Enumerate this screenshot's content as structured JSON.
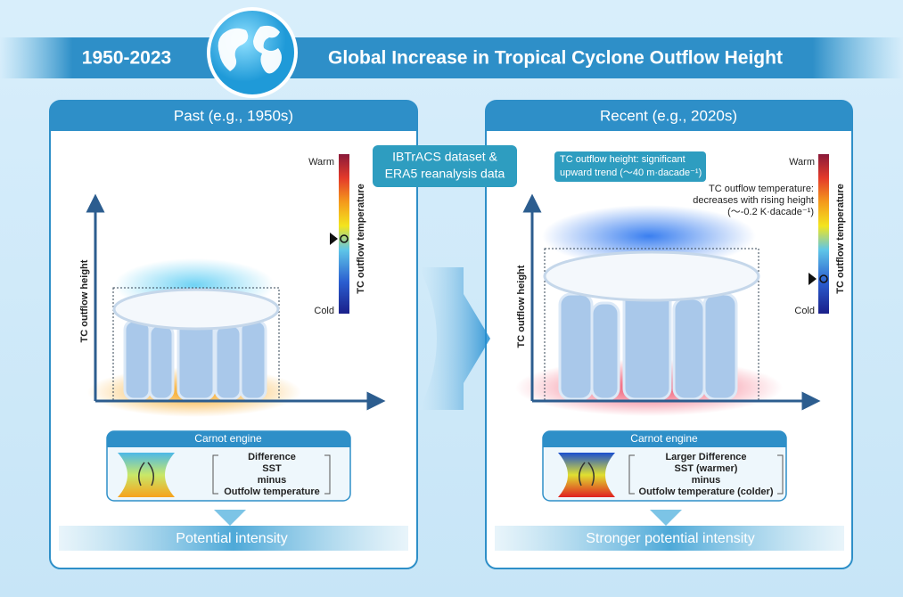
{
  "header": {
    "years": "1950-2023",
    "title": "Global Increase in Tropical Cyclone Outflow Height"
  },
  "center_label": [
    "IBTrACS dataset &",
    "ERA5 reanalysis data"
  ],
  "panels": [
    {
      "title": "Past (e.g., 1950s)",
      "y_axis": "TC outflow height",
      "colorbar": {
        "warm": "Warm",
        "cold": "Cold",
        "label": "TC outflow temperature"
      },
      "engine": {
        "title": "Carnot engine",
        "lines": [
          "Difference",
          "SST",
          "minus",
          "Outfolw temperature"
        ]
      },
      "result": "Potential intensity"
    },
    {
      "title": "Recent (e.g., 2020s)",
      "y_axis": "TC outflow height",
      "colorbar": {
        "warm": "Warm",
        "cold": "Cold",
        "label": "TC outflow temperature"
      },
      "height_note": [
        "TC outflow height: significant",
        "upward trend (～40 m·dacade⁻¹)"
      ],
      "temp_note": [
        "TC outflow temperature:",
        "decreases with rising height",
        "(～-0.2 K·dacade⁻¹)"
      ],
      "engine": {
        "title": "Carnot engine",
        "lines": [
          "Larger Difference",
          "SST (warmer)",
          "minus",
          "Outfolw temperature (colder)"
        ]
      },
      "result": "Stronger potential intensity"
    }
  ]
}
